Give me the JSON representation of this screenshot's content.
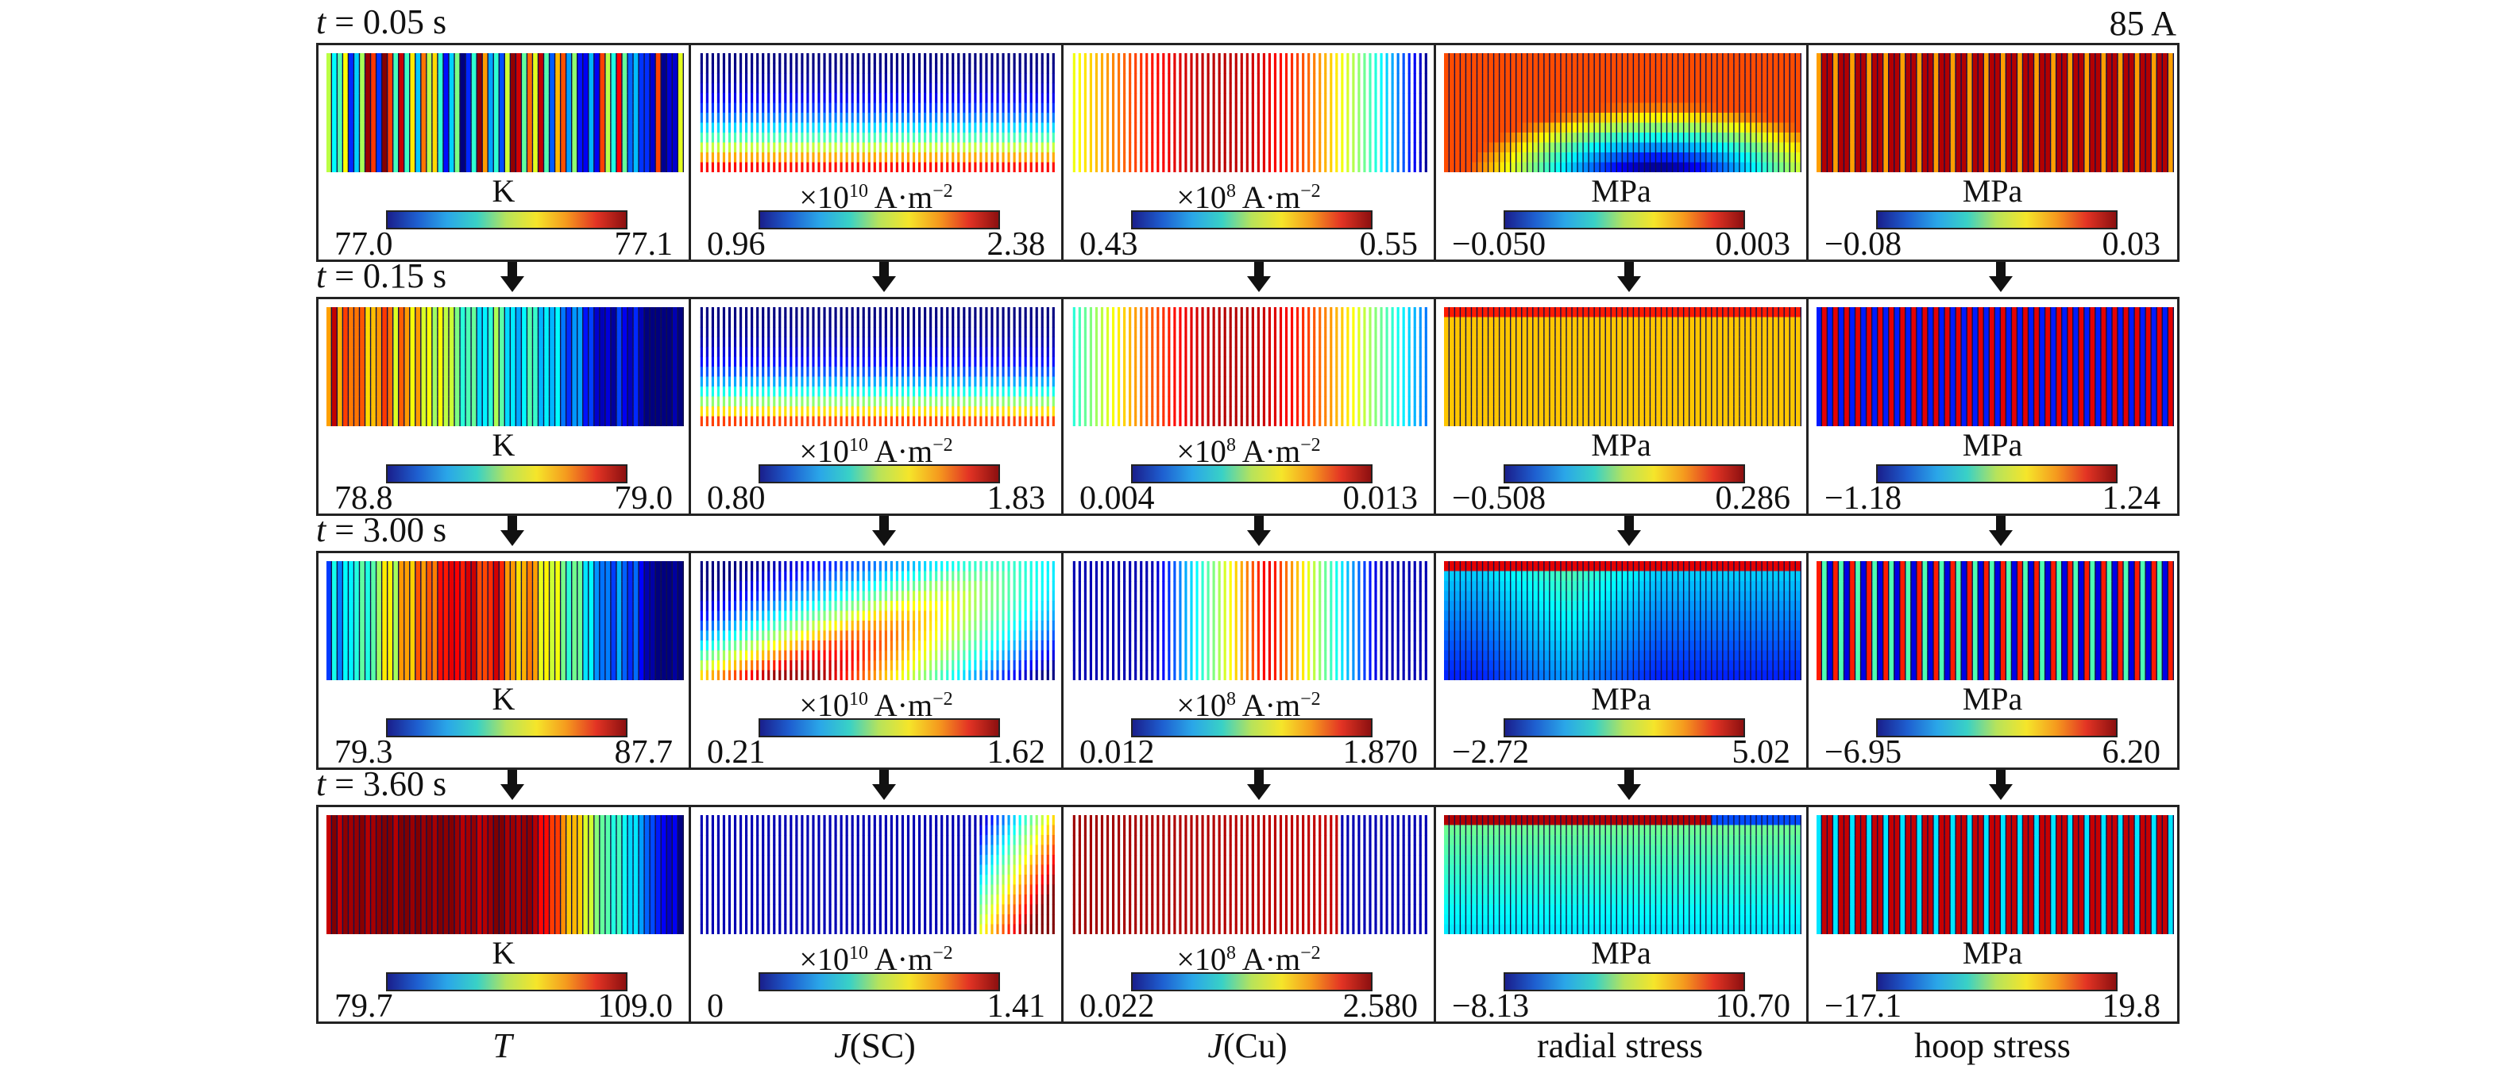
{
  "current_label": "85 A",
  "time_prefix": "t",
  "rows": [
    {
      "time": "= 0.05 s",
      "panels": [
        {
          "unit": "K",
          "min": "77.0",
          "max": "77.1"
        },
        {
          "unit": "×10",
          "exp": "10",
          "unit2": " A·m",
          "exp2": "−2",
          "min": "0.96",
          "max": "2.38"
        },
        {
          "unit": "×10",
          "exp": "8",
          "unit2": " A·m",
          "exp2": "−2",
          "min": "0.43",
          "max": "0.55"
        },
        {
          "unit": "MPa",
          "min": "−0.050",
          "max": "0.003"
        },
        {
          "unit": "MPa",
          "min": "−0.08",
          "max": "0.03"
        }
      ]
    },
    {
      "time": "= 0.15 s",
      "panels": [
        {
          "unit": "K",
          "min": "78.8",
          "max": "79.0"
        },
        {
          "unit": "×10",
          "exp": "10",
          "unit2": " A·m",
          "exp2": "−2",
          "min": "0.80",
          "max": "1.83"
        },
        {
          "unit": "×10",
          "exp": "8",
          "unit2": " A·m",
          "exp2": "−2",
          "min": "0.004",
          "max": "0.013"
        },
        {
          "unit": "MPa",
          "min": "−0.508",
          "max": "0.286"
        },
        {
          "unit": "MPa",
          "min": "−1.18",
          "max": "1.24"
        }
      ]
    },
    {
      "time": "= 3.00 s",
      "panels": [
        {
          "unit": "K",
          "min": "79.3",
          "max": "87.7"
        },
        {
          "unit": "×10",
          "exp": "10",
          "unit2": " A·m",
          "exp2": "−2",
          "min": "0.21",
          "max": "1.62"
        },
        {
          "unit": "×10",
          "exp": "8",
          "unit2": " A·m",
          "exp2": "−2",
          "min": "0.012",
          "max": "1.870"
        },
        {
          "unit": "MPa",
          "min": "−2.72",
          "max": "5.02"
        },
        {
          "unit": "MPa",
          "min": "−6.95",
          "max": "6.20"
        }
      ]
    },
    {
      "time": "= 3.60 s",
      "panels": [
        {
          "unit": "K",
          "min": "79.7",
          "max": "109.0"
        },
        {
          "unit": "×10",
          "exp": "10",
          "unit2": " A·m",
          "exp2": "−2",
          "min": "0",
          "max": "1.41"
        },
        {
          "unit": "×10",
          "exp": "8",
          "unit2": " A·m",
          "exp2": "−2",
          "min": "0.022",
          "max": "2.580"
        },
        {
          "unit": "MPa",
          "min": "−8.13",
          "max": "10.70"
        },
        {
          "unit": "MPa",
          "min": "−17.1",
          "max": "19.8"
        }
      ]
    }
  ],
  "columns": [
    {
      "label": "T",
      "italic": true
    },
    {
      "label": "J",
      "italic": true,
      "suffix": "(SC)"
    },
    {
      "label": "J",
      "italic": true,
      "suffix": "(Cu)"
    },
    {
      "label": "radial stress",
      "italic": false
    },
    {
      "label": "hoop stress",
      "italic": false
    }
  ]
}
